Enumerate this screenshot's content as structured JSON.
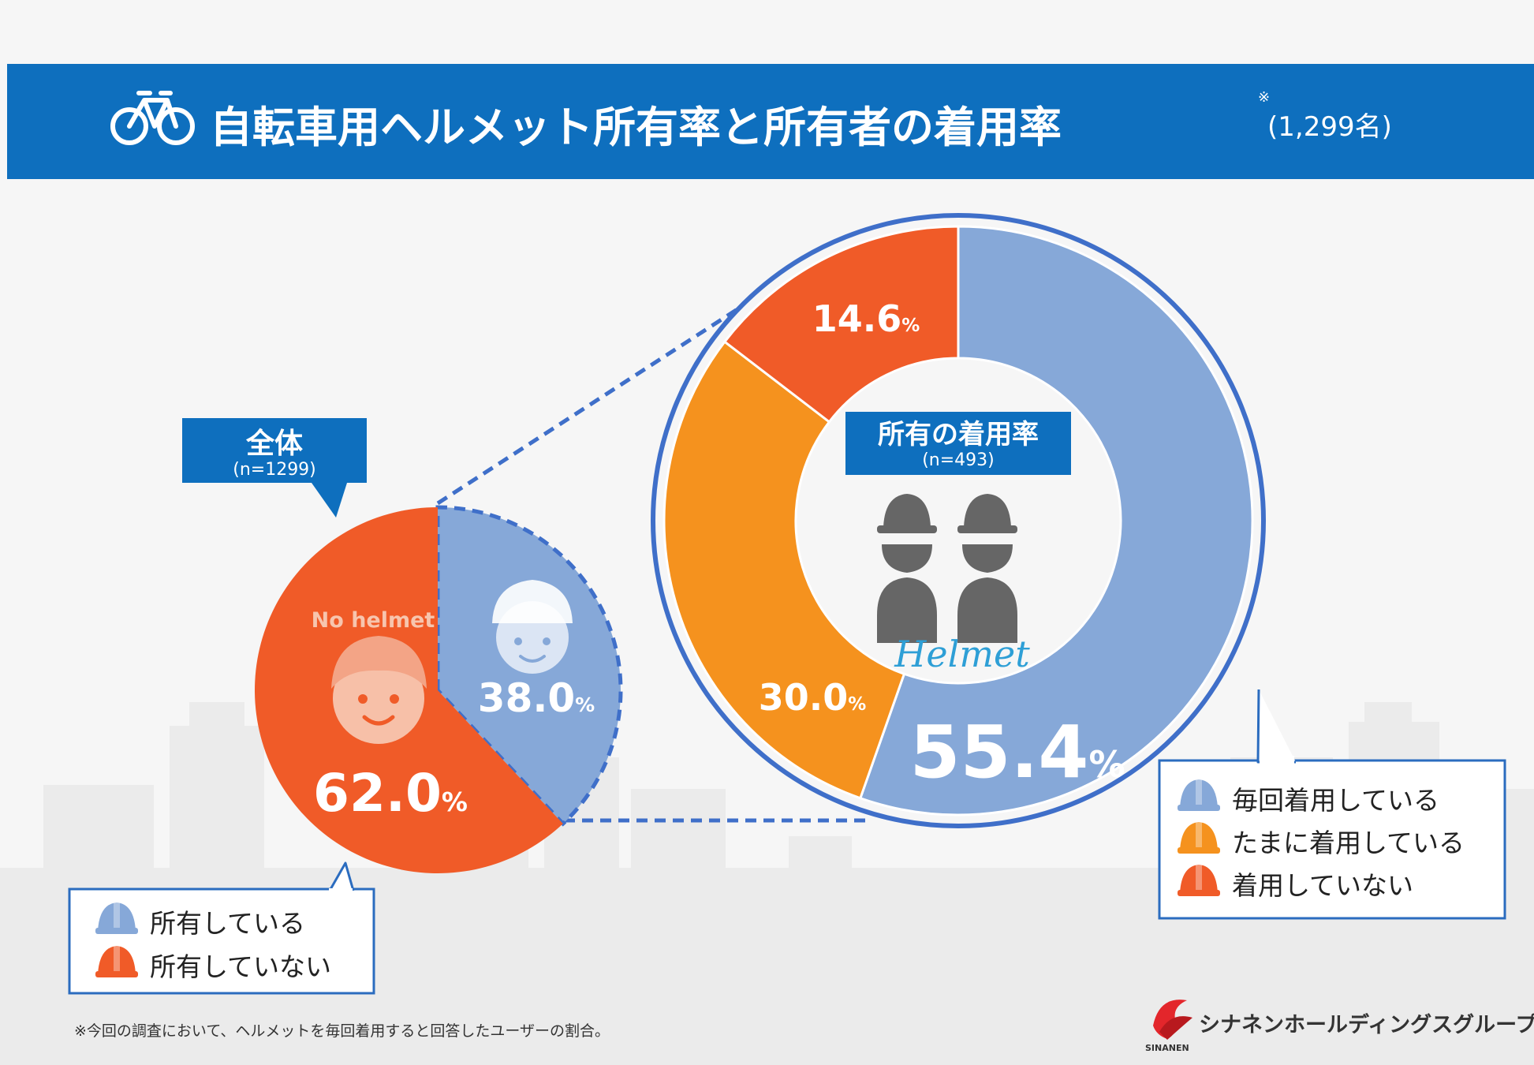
{
  "header": {
    "title": "自転車用ヘルメット所有率と所有者の着用率",
    "asterisk": "※",
    "sample": "(1,299名)"
  },
  "chart_data": [
    {
      "type": "pie",
      "label": "全体",
      "sublabel": "(n=1299)",
      "categories": [
        "所有している",
        "所有していない"
      ],
      "values": [
        38.0,
        62.0
      ],
      "slice_labels": [
        "38.0",
        "62.0"
      ],
      "unit": "%",
      "colors": [
        "#86a8d8",
        "#f05b28"
      ],
      "annotation": "No helmet",
      "legend": [
        "所有している",
        "所有していない"
      ]
    },
    {
      "type": "pie",
      "label": "所有の着用率",
      "sublabel": "(n=493)",
      "categories": [
        "毎回着用している",
        "たまに着用している",
        "着用していない"
      ],
      "values": [
        55.4,
        30.0,
        14.6
      ],
      "slice_labels": [
        "55.4",
        "30.0",
        "14.6"
      ],
      "unit": "%",
      "colors": [
        "#86a8d8",
        "#f5921e",
        "#f05b28"
      ],
      "annotation": "Helmet",
      "legend": [
        "毎回着用している",
        "たまに着用している",
        "着用していない"
      ]
    }
  ],
  "colors": {
    "header": "#0e6fbe",
    "accent": "#3f6fc9",
    "white": "#ffffff",
    "dark": "#666666"
  },
  "footnote": "※今回の調査において、ヘルメットを毎回着用すると回答したユーザーの割合。",
  "brand": {
    "name": "シナネンホールディングスグループ",
    "sub": "SINANEN"
  }
}
